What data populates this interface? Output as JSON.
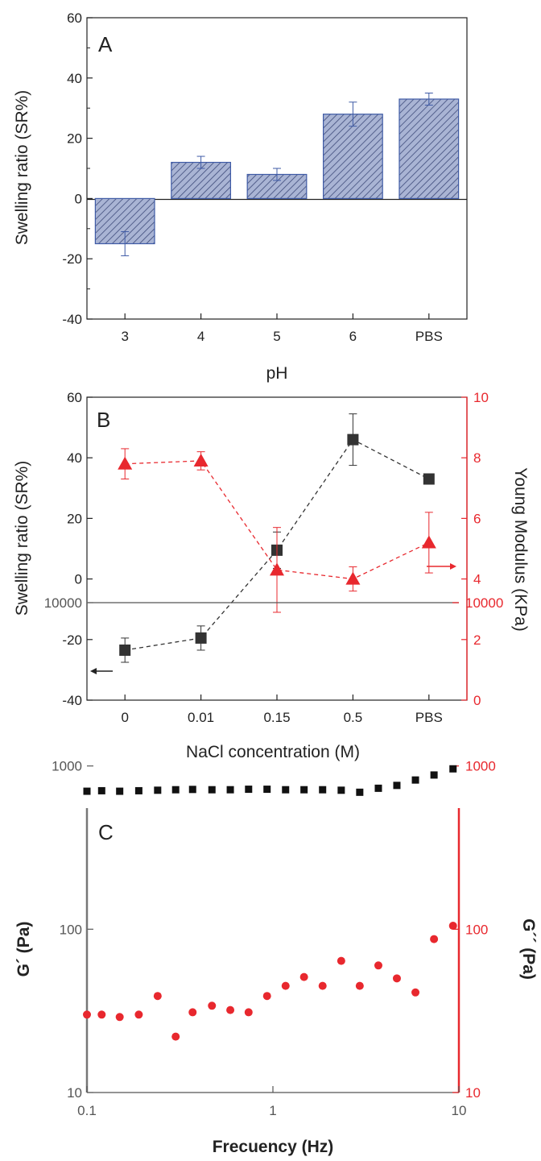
{
  "colors": {
    "bar_fill": "#a9b4d4",
    "bar_hatch": "#3d4a7a",
    "bar_edge": "#3f5ba6",
    "black_series": "#333333",
    "red_series": "#e8282e",
    "axis_grey": "#707070"
  },
  "chart_data": [
    {
      "type": "bar",
      "panel_label": "A",
      "title": "",
      "xlabel": "pH",
      "ylabel": "Swelling ratio (SR%)",
      "categories": [
        "3",
        "4",
        "5",
        "6",
        "PBS"
      ],
      "values": [
        -15,
        12,
        8,
        28,
        33
      ],
      "errors": [
        4,
        2,
        2,
        4,
        2
      ],
      "ylim": [
        -40,
        60
      ],
      "yticks": [
        "-40",
        "-20",
        "0",
        "20",
        "40",
        "60"
      ],
      "grid": false
    },
    {
      "type": "line",
      "panel_label": "B",
      "title": "",
      "xlabel": "NaCl concentration (M)",
      "ylabel": "Swelling ratio (SR%)",
      "ylabel_right": "Young Modulus (KPa)",
      "categories": [
        "0",
        "0.01",
        "0.15",
        "0.5",
        "PBS"
      ],
      "ylim": [
        -40,
        60
      ],
      "ylim_right": [
        0,
        10
      ],
      "yticks": [
        "-40",
        "-20",
        "0",
        "20",
        "40",
        "60"
      ],
      "yticks_right": [
        "0",
        "2",
        "4",
        "6",
        "8",
        "10"
      ],
      "series": [
        {
          "axis": "left",
          "marker": "square",
          "values": [
            -23.5,
            -19.5,
            9.5,
            46,
            33
          ],
          "errors": [
            4,
            4,
            6,
            8.5,
            1.5
          ]
        },
        {
          "axis": "right",
          "marker": "triangle",
          "values": [
            7.8,
            7.9,
            4.3,
            4.0,
            5.2
          ],
          "errors": [
            0.5,
            0.3,
            1.4,
            0.4,
            1.0
          ]
        }
      ],
      "grid": false
    },
    {
      "type": "scatter",
      "panel_label": "C",
      "title": "",
      "xlabel": "Frecuency (Hz)",
      "ylabel": "G´ (Pa)",
      "ylabel_right": "G´´ (Pa)",
      "x_scale": "log",
      "y_scale": "log",
      "xlim": [
        0.1,
        10
      ],
      "ylim": [
        10,
        10000
      ],
      "ylim_right": [
        10,
        10000
      ],
      "xticks": [
        "0.1",
        "1",
        "10"
      ],
      "yticks": [
        "10",
        "100",
        "1000",
        "10000"
      ],
      "yticks_right": [
        "10",
        "100",
        "1000",
        "10000"
      ],
      "series": [
        {
          "axis": "left",
          "marker": "square",
          "x": [
            0.1,
            0.12,
            0.15,
            0.19,
            0.24,
            0.3,
            0.37,
            0.47,
            0.59,
            0.74,
            0.93,
            1.17,
            1.47,
            1.85,
            2.33,
            2.93,
            3.69,
            4.64,
            5.84,
            7.35,
            9.3
          ],
          "y": [
            700,
            705,
            700,
            705,
            710,
            715,
            718,
            715,
            715,
            720,
            720,
            715,
            715,
            715,
            710,
            690,
            730,
            760,
            820,
            880,
            960
          ]
        },
        {
          "axis": "right",
          "marker": "circle",
          "x": [
            0.1,
            0.12,
            0.15,
            0.19,
            0.24,
            0.3,
            0.37,
            0.47,
            0.59,
            0.74,
            0.93,
            1.17,
            1.47,
            1.85,
            2.33,
            2.93,
            3.69,
            4.64,
            5.84,
            7.35,
            9.3
          ],
          "y": [
            30,
            30,
            29,
            30,
            39,
            22,
            31,
            34,
            32,
            31,
            39,
            45,
            51,
            45,
            64,
            45,
            60,
            50,
            41,
            87,
            105
          ]
        }
      ],
      "grid": false
    }
  ]
}
